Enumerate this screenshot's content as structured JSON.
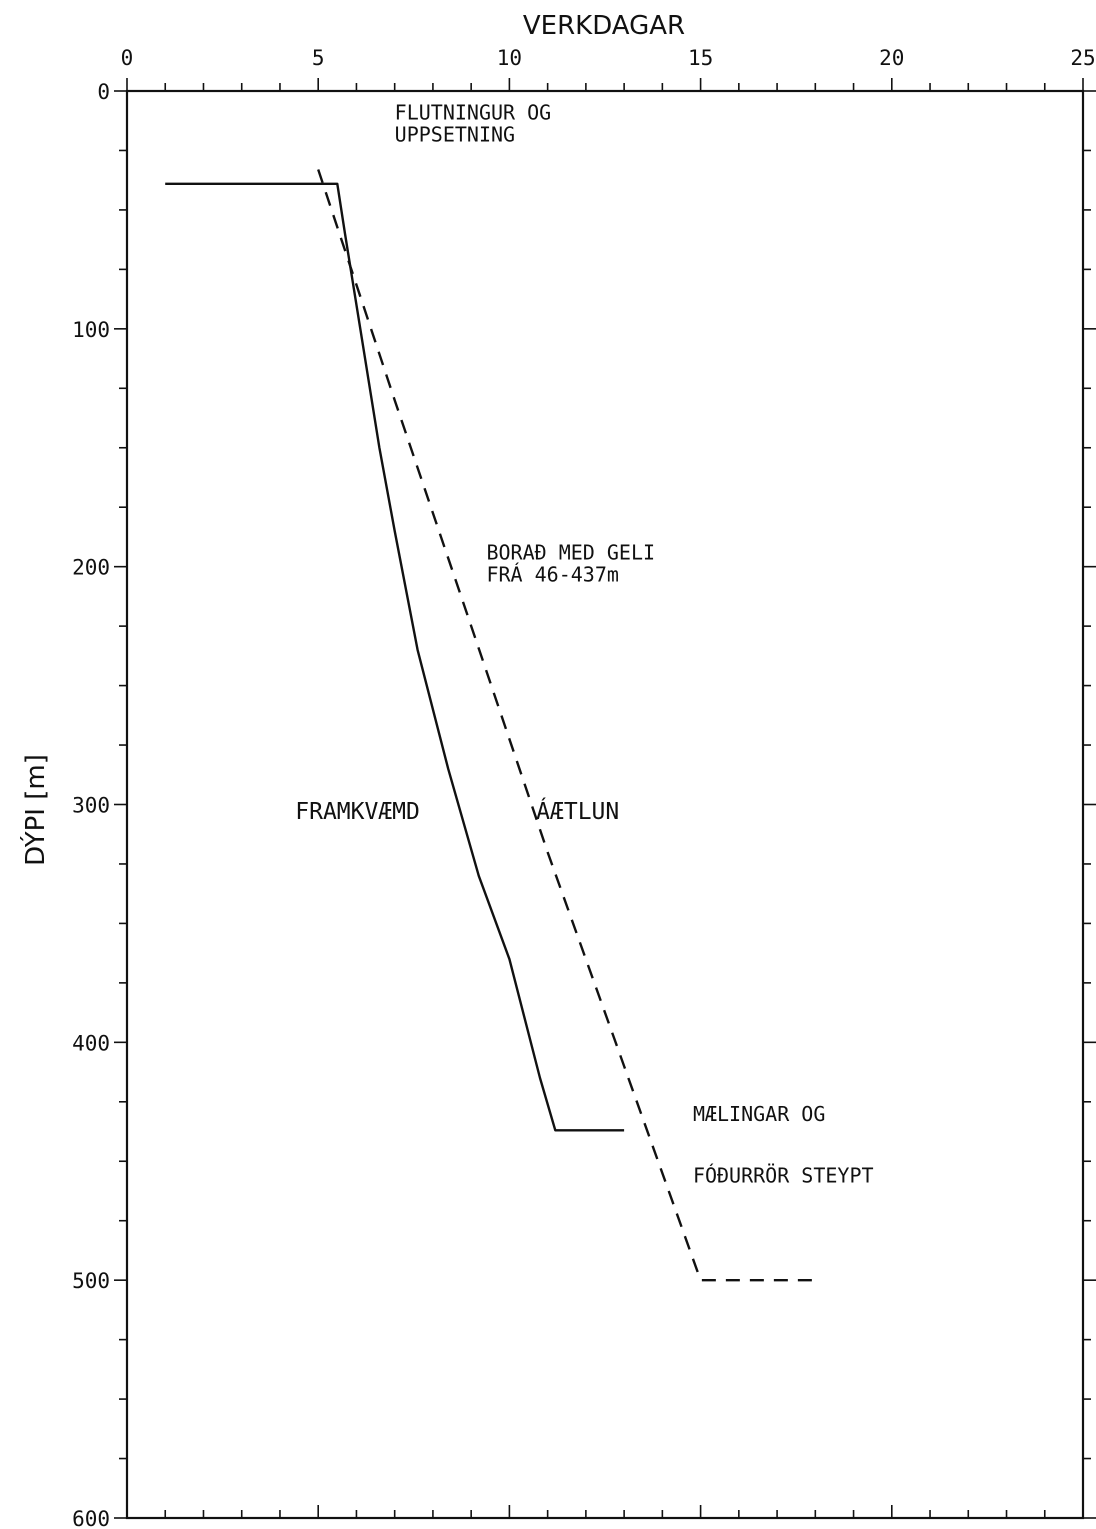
{
  "chart_data": {
    "type": "line",
    "xlabel": "VERKDAGAR",
    "ylabel": "DÝPI [m]",
    "xlim": [
      0,
      25
    ],
    "ylim": [
      0,
      600
    ],
    "y_inverted": true,
    "x_axis_position": "top",
    "x_ticks": [
      0,
      5,
      10,
      15,
      20,
      25
    ],
    "x_tick_labels": [
      "0",
      "5",
      "10",
      "15",
      "20",
      "25"
    ],
    "y_ticks": [
      0,
      100,
      200,
      300,
      400,
      500,
      600
    ],
    "y_tick_labels": [
      "0",
      "100",
      "200",
      "300",
      "400",
      "500",
      "600"
    ],
    "grid": false,
    "series": [
      {
        "name": "FRAMKVÆMD",
        "style": "solid",
        "color": "#111111",
        "points": [
          [
            1.0,
            39
          ],
          [
            5.5,
            39
          ],
          [
            5.7,
            60
          ],
          [
            6.1,
            100
          ],
          [
            6.6,
            150
          ],
          [
            7.0,
            185
          ],
          [
            7.6,
            235
          ],
          [
            8.4,
            285
          ],
          [
            9.2,
            330
          ],
          [
            10.0,
            365
          ],
          [
            10.8,
            415
          ],
          [
            11.2,
            437
          ],
          [
            13.0,
            437
          ]
        ]
      },
      {
        "name": "ÁÆTLUN",
        "style": "dashed",
        "color": "#111111",
        "points": [
          [
            5.0,
            33
          ],
          [
            7.0,
            130
          ],
          [
            9.0,
            225
          ],
          [
            11.0,
            320
          ],
          [
            13.0,
            410
          ],
          [
            15.0,
            500
          ],
          [
            18.0,
            500
          ]
        ]
      }
    ],
    "annotations": [
      {
        "lines": [
          "FLUTNINGUR OG",
          "UPPSETNING"
        ],
        "x": 7.0,
        "y": 12,
        "size": "small"
      },
      {
        "lines": [
          "BORAÐ MED GELI",
          "FRÁ 46-437m"
        ],
        "x": 9.4,
        "y": 197,
        "size": "small"
      },
      {
        "lines": [
          "FRAMKVÆMD"
        ],
        "x": 4.4,
        "y": 306,
        "size": "large"
      },
      {
        "lines": [
          "ÁÆTLUN"
        ],
        "x": 10.7,
        "y": 306,
        "size": "large"
      },
      {
        "lines": [
          "MÆLINGAR OG"
        ],
        "x": 14.8,
        "y": 433,
        "size": "small"
      },
      {
        "lines": [
          "FÓÐURRÖR STEYPT"
        ],
        "x": 14.8,
        "y": 459,
        "size": "small"
      }
    ]
  }
}
